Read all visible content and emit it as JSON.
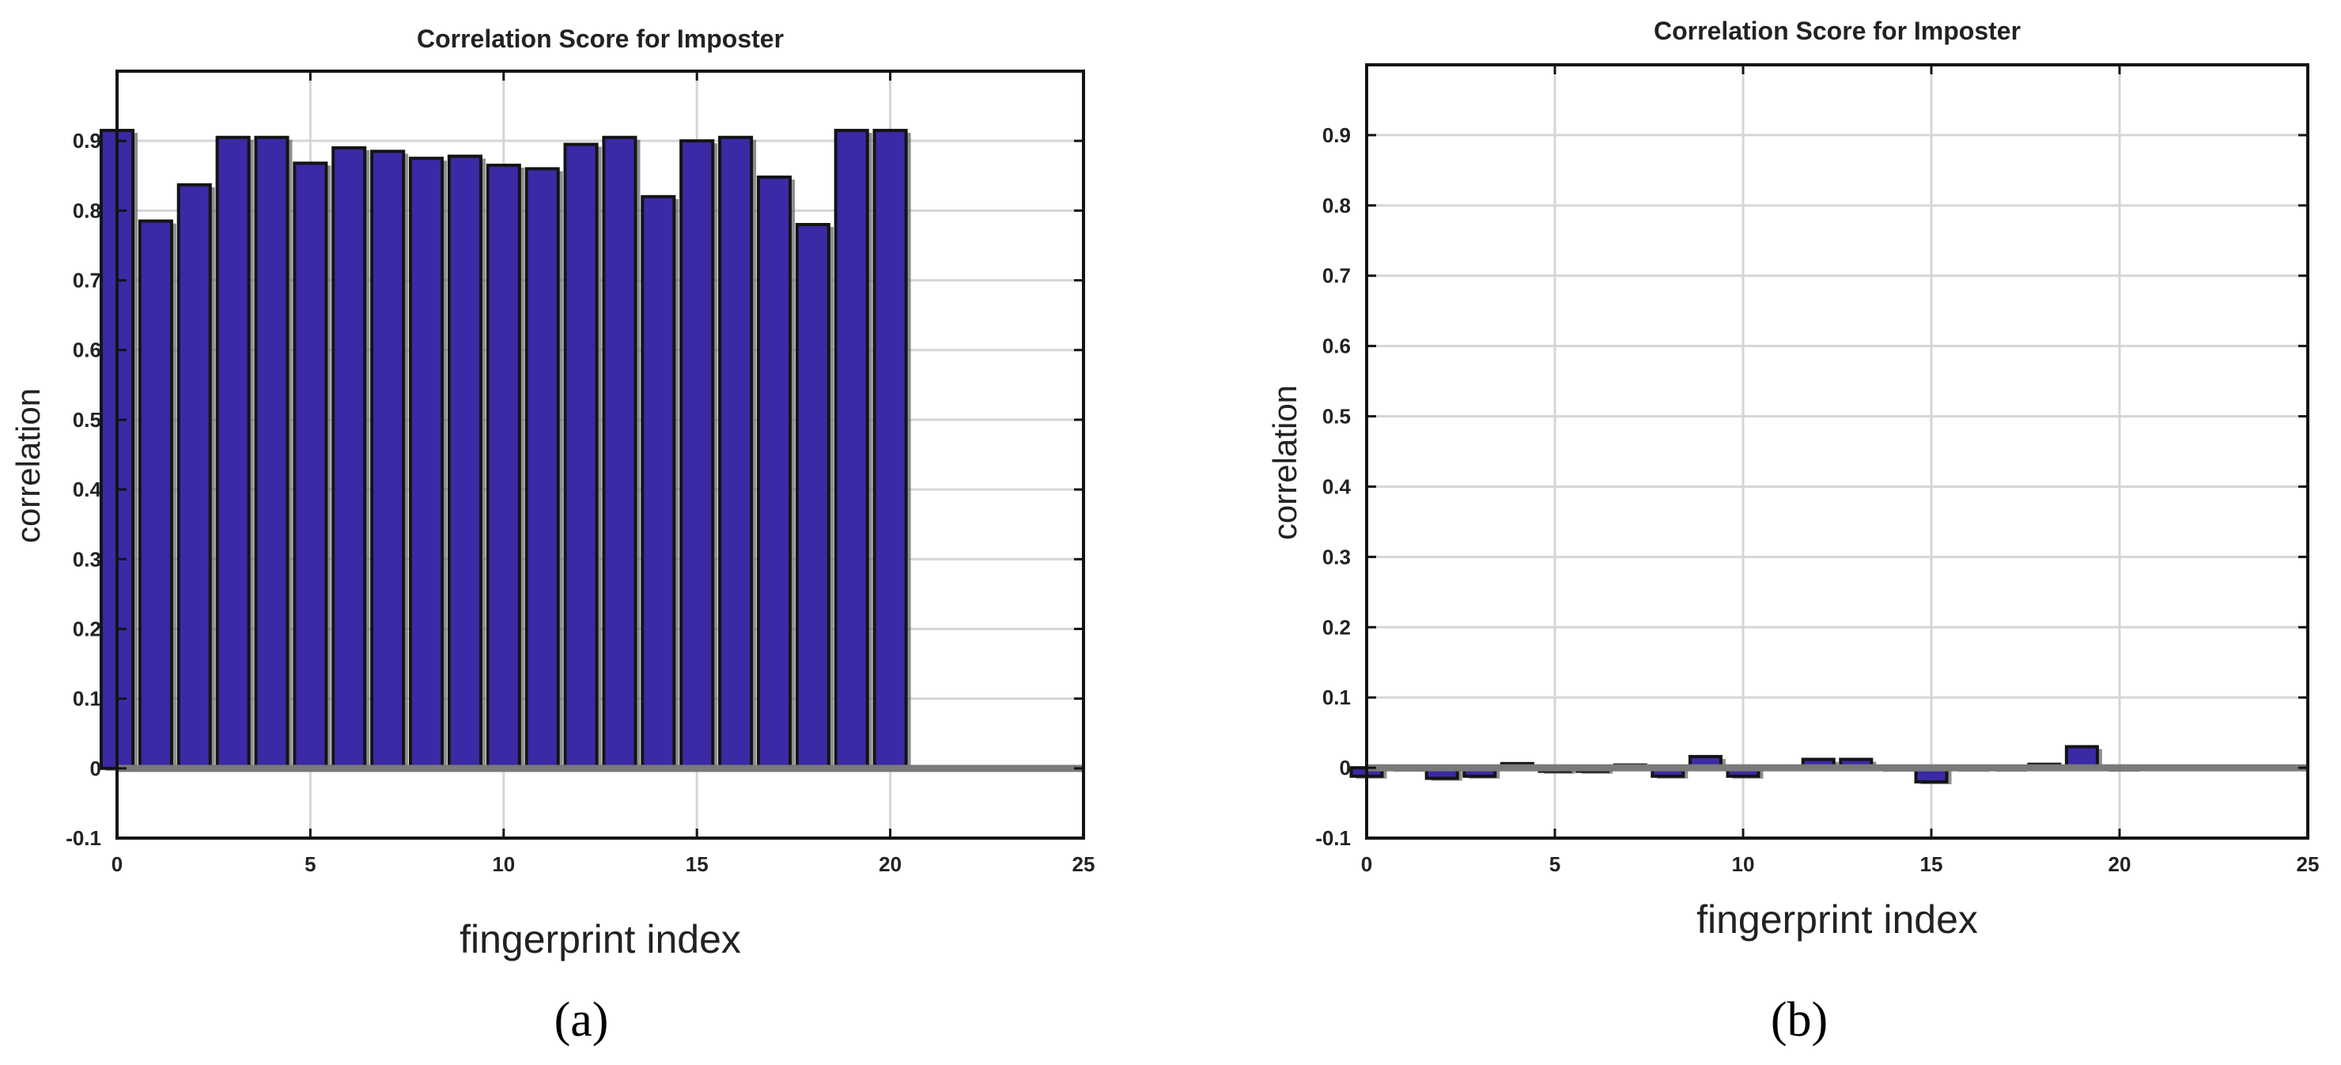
{
  "colors": {
    "bar_fill": "#3a2aa6",
    "bar_stroke": "#141414",
    "bar_shadow": "#6a6a6a",
    "grid": "#d6d6d6",
    "axis": "#141414",
    "zero_line": "#7a7a7a",
    "text": "#222222"
  },
  "panels": [
    {
      "panel_label": "(a)",
      "panel_letter": "a"
    },
    {
      "panel_label": "(b)",
      "panel_letter": "b"
    }
  ],
  "chart_data": [
    {
      "type": "bar",
      "title": "Correlation Score for Imposter",
      "xlabel": "fingerprint index",
      "ylabel": "correlation",
      "xlim": [
        0,
        25
      ],
      "ylim": [
        -0.1,
        1.0
      ],
      "xticks": [
        0,
        5,
        10,
        15,
        20,
        25
      ],
      "xtick_labels": [
        "0",
        "5",
        "10",
        "15",
        "20",
        "25"
      ],
      "yticks": [
        -0.1,
        0,
        0.1,
        0.2,
        0.3,
        0.4,
        0.5,
        0.6,
        0.7,
        0.8,
        0.9
      ],
      "ytick_labels": [
        "-0.1",
        "0",
        "0.1",
        "0.2",
        "0.3",
        "0.4",
        "0.5",
        "0.6",
        "0.7",
        "0.8",
        "0.9"
      ],
      "grid": true,
      "x": [
        0,
        1,
        2,
        3,
        4,
        5,
        6,
        7,
        8,
        9,
        10,
        11,
        12,
        13,
        14,
        15,
        16,
        17,
        18,
        19,
        20
      ],
      "values": [
        0.915,
        0.785,
        0.837,
        0.905,
        0.905,
        0.868,
        0.89,
        0.885,
        0.875,
        0.878,
        0.865,
        0.86,
        0.895,
        0.905,
        0.82,
        0.9,
        0.905,
        0.848,
        0.78,
        0.915,
        0.915
      ]
    },
    {
      "type": "bar",
      "title": "Correlation Score for Imposter",
      "xlabel": "fingerprint index",
      "ylabel": "correlation",
      "xlim": [
        0,
        25
      ],
      "ylim": [
        -0.1,
        1.0
      ],
      "xticks": [
        0,
        5,
        10,
        15,
        20,
        25
      ],
      "xtick_labels": [
        "0",
        "5",
        "10",
        "15",
        "20",
        "25"
      ],
      "yticks": [
        -0.1,
        0,
        0.1,
        0.2,
        0.3,
        0.4,
        0.5,
        0.6,
        0.7,
        0.8,
        0.9
      ],
      "ytick_labels": [
        "-0.1",
        "0",
        "0.1",
        "0.2",
        "0.3",
        "0.4",
        "0.5",
        "0.6",
        "0.7",
        "0.8",
        "0.9"
      ],
      "grid": true,
      "x": [
        0,
        1,
        2,
        3,
        4,
        5,
        6,
        7,
        8,
        9,
        10,
        11,
        12,
        13,
        14,
        15,
        16,
        17,
        18,
        19,
        20
      ],
      "values": [
        -0.012,
        0.0,
        -0.015,
        -0.012,
        0.006,
        -0.005,
        -0.005,
        0.004,
        -0.012,
        0.016,
        -0.012,
        0.002,
        0.012,
        0.012,
        0.0,
        -0.02,
        0.0,
        0.0,
        0.005,
        0.03,
        0.0
      ]
    }
  ]
}
